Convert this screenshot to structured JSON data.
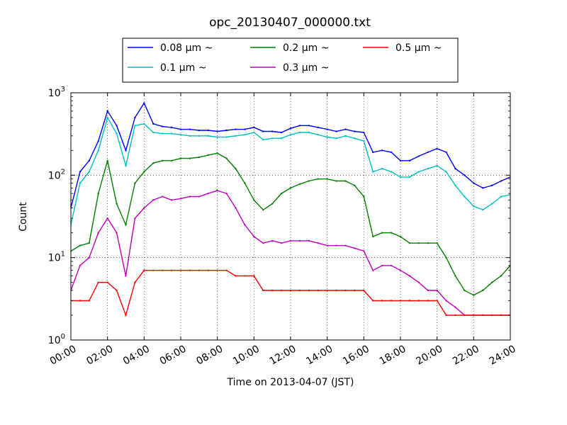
{
  "chart_data": {
    "type": "line",
    "title": "opc_20130407_000000.txt",
    "xlabel": "Time on 2013-04-07 (JST)",
    "ylabel": "Count",
    "xlim": [
      "2013-04-07 00:00",
      "2013-04-08 00:00"
    ],
    "ylim": [
      1,
      1000
    ],
    "yscale": "log",
    "grid": true,
    "legend_position": "top-center",
    "x_ticks": [
      "00:00",
      "02:00",
      "04:00",
      "06:00",
      "08:00",
      "10:00",
      "12:00",
      "14:00",
      "16:00",
      "18:00",
      "20:00",
      "22:00",
      "24:00"
    ],
    "y_ticks": [
      {
        "value": 1,
        "base": "10",
        "exp": "0"
      },
      {
        "value": 10,
        "base": "10",
        "exp": "1"
      },
      {
        "value": 100,
        "base": "10",
        "exp": "2"
      },
      {
        "value": 1000,
        "base": "10",
        "exp": "3"
      }
    ],
    "x_hours": [
      0,
      0.5,
      1,
      1.5,
      2,
      2.5,
      3,
      3.5,
      4,
      4.5,
      5,
      5.5,
      6,
      6.5,
      7,
      7.5,
      8,
      8.5,
      9,
      9.5,
      10,
      10.5,
      11,
      11.5,
      12,
      12.5,
      13,
      13.5,
      14,
      14.5,
      15,
      15.5,
      16,
      16.5,
      17,
      17.5,
      18,
      18.5,
      19,
      19.5,
      20,
      20.5,
      21,
      21.5,
      22,
      22.5,
      23,
      23.5,
      24
    ],
    "series": [
      {
        "name": "0.08 μm ~",
        "color": "#0000ff",
        "values": [
          40,
          110,
          150,
          260,
          600,
          400,
          200,
          500,
          750,
          420,
          390,
          380,
          360,
          360,
          350,
          350,
          340,
          350,
          360,
          360,
          380,
          340,
          340,
          330,
          370,
          400,
          400,
          380,
          360,
          340,
          360,
          340,
          330,
          190,
          200,
          190,
          150,
          150,
          170,
          190,
          210,
          190,
          120,
          100,
          80,
          70,
          75,
          85,
          95
        ]
      },
      {
        "name": "0.1 μm ~",
        "color": "#00bfbf",
        "values": [
          25,
          80,
          110,
          200,
          500,
          320,
          130,
          400,
          420,
          330,
          320,
          320,
          310,
          300,
          300,
          300,
          290,
          290,
          300,
          310,
          330,
          270,
          280,
          280,
          310,
          330,
          330,
          310,
          290,
          280,
          300,
          280,
          260,
          110,
          120,
          110,
          95,
          95,
          110,
          120,
          130,
          110,
          75,
          55,
          42,
          38,
          45,
          55,
          58
        ]
      },
      {
        "name": "0.2 μm ~",
        "color": "#008000",
        "values": [
          12,
          14,
          15,
          60,
          150,
          45,
          25,
          80,
          110,
          140,
          150,
          150,
          160,
          160,
          165,
          175,
          185,
          160,
          120,
          80,
          50,
          38,
          45,
          60,
          70,
          78,
          85,
          90,
          90,
          85,
          85,
          75,
          55,
          18,
          20,
          20,
          18,
          15,
          15,
          15,
          15,
          10,
          6,
          4,
          3.5,
          4,
          5,
          6,
          8
        ]
      },
      {
        "name": "0.3 μm ~",
        "color": "#bf00bf",
        "values": [
          4,
          8,
          10,
          20,
          30,
          20,
          6,
          30,
          40,
          50,
          55,
          50,
          52,
          55,
          55,
          60,
          65,
          60,
          40,
          25,
          18,
          15,
          16,
          15,
          16,
          16,
          16,
          15,
          14,
          14,
          14,
          13,
          12,
          7,
          8,
          8,
          7,
          6,
          5,
          4,
          4,
          3,
          2.5,
          2,
          2,
          2,
          2,
          2,
          2
        ]
      },
      {
        "name": "0.5 μm ~",
        "color": "#ff0000",
        "values": [
          3,
          3,
          3,
          5,
          5,
          4,
          2,
          5,
          7,
          7,
          7,
          7,
          7,
          7,
          7,
          7,
          7,
          7,
          6,
          6,
          6,
          4,
          4,
          4,
          4,
          4,
          4,
          4,
          4,
          4,
          4,
          4,
          4,
          3,
          3,
          3,
          3,
          3,
          3,
          3,
          3,
          2,
          2,
          2,
          2,
          2,
          2,
          2,
          2
        ]
      }
    ]
  }
}
